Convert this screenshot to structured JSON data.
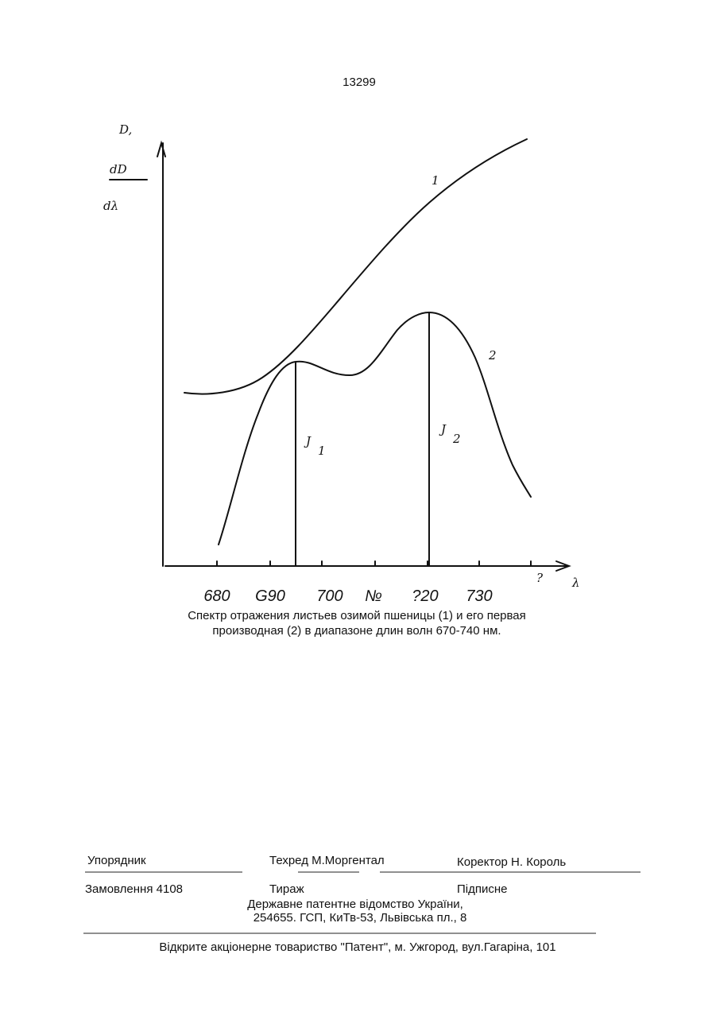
{
  "page_number": "13299",
  "figure": {
    "y_axis_label": [
      "D,",
      "dD",
      "dλ"
    ],
    "x_axis_label": "λ",
    "curve_labels": [
      "1",
      "2"
    ],
    "peak_labels": [
      {
        "letter": "J",
        "index": "1"
      },
      {
        "letter": "J",
        "index": "2"
      }
    ],
    "tick_labels": [
      "680",
      "G90",
      "700",
      "№",
      "?20",
      "730"
    ],
    "axis_end_mark": "?"
  },
  "caption": [
    "Спектр отражения листьев озимой пшеницы (1) и его первая",
    "производная (2) в диапазоне длин волн 670-740 нм."
  ],
  "footer": {
    "rows": [
      [
        "Упорядник",
        "Техред М.Моргентал",
        "Коректор Н. Король"
      ],
      [
        "Замовлення 4108",
        "Тираж",
        "Підписне"
      ]
    ],
    "office": [
      "Державне патентне відомство України,",
      "254655. ГСП, КиТв-53, Львівська пл., 8"
    ],
    "publisher": "Відкрите акціонерне товариство \"Патент\", м. Ужгород, вул.Гагаріна, 101"
  }
}
